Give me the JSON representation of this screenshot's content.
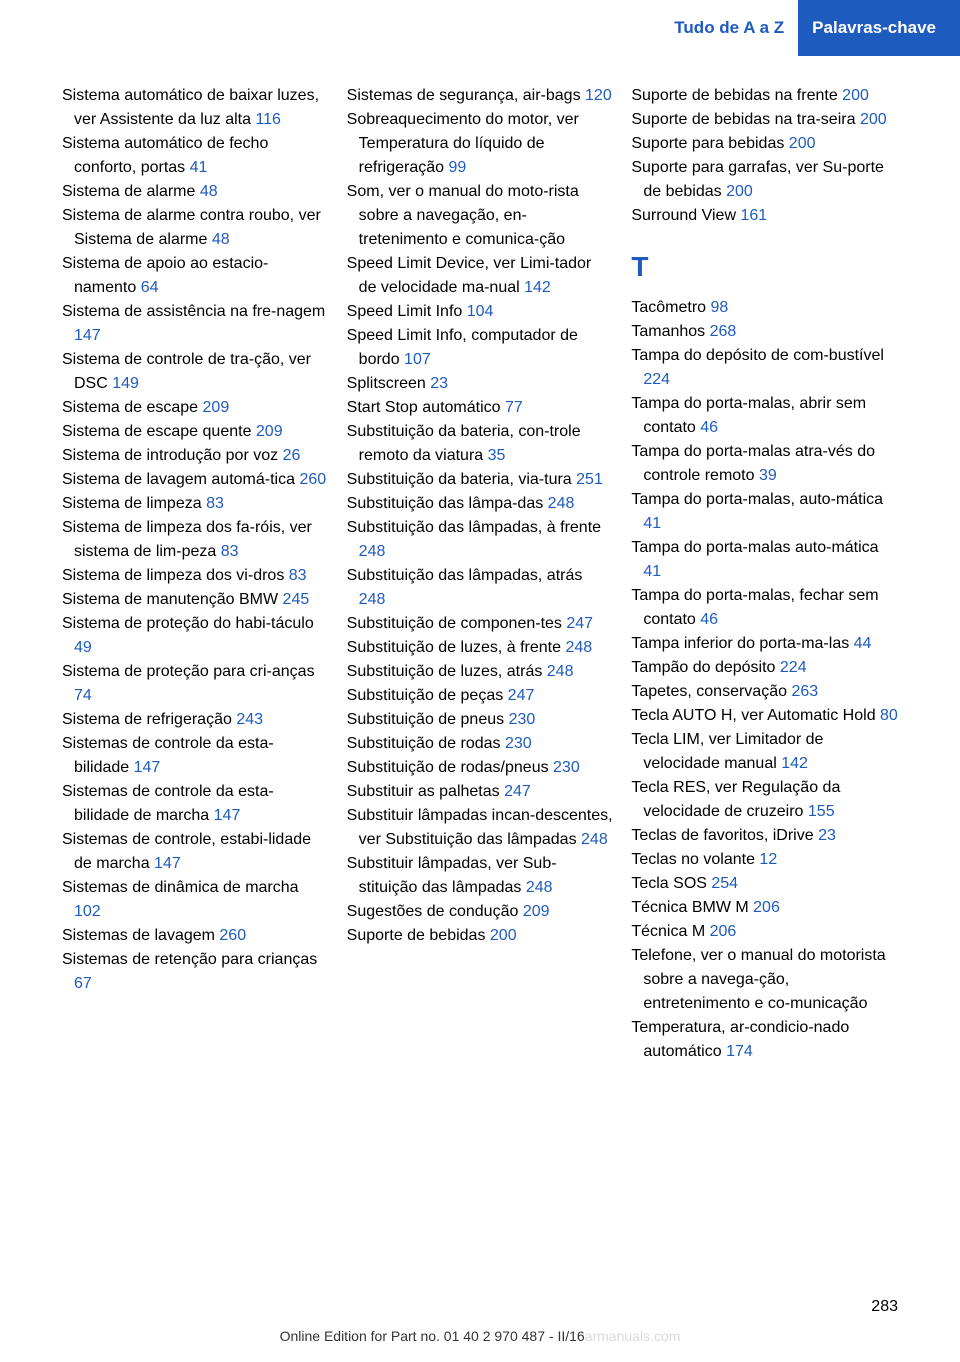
{
  "header": {
    "left": "Tudo de A a Z",
    "right": "Palavras-chave"
  },
  "columns": [
    [
      {
        "text": "Sistema automático de baixar luzes, ver Assistente da luz alta ",
        "ref": "116"
      },
      {
        "text": "Sistema automático de fecho conforto, portas ",
        "ref": "41"
      },
      {
        "text": "Sistema de alarme ",
        "ref": "48"
      },
      {
        "text": "Sistema de alarme contra roubo, ver Sistema de alarme ",
        "ref": "48"
      },
      {
        "text": "Sistema de apoio ao estacio‐namento ",
        "ref": "64"
      },
      {
        "text": "Sistema de assistência na fre‐nagem ",
        "ref": "147"
      },
      {
        "text": "Sistema de controle de tra‐ção, ver DSC ",
        "ref": "149"
      },
      {
        "text": "Sistema de escape ",
        "ref": "209"
      },
      {
        "text": "Sistema de escape quente ",
        "ref": "209"
      },
      {
        "text": "Sistema de introdução por voz ",
        "ref": "26"
      },
      {
        "text": "Sistema de lavagem automá‐tica ",
        "ref": "260"
      },
      {
        "text": "Sistema de limpeza ",
        "ref": "83"
      },
      {
        "text": "Sistema de limpeza dos fa‐róis, ver sistema de lim‐peza ",
        "ref": "83"
      },
      {
        "text": "Sistema de limpeza dos vi‐dros ",
        "ref": "83"
      },
      {
        "text": "Sistema de manutenção BMW ",
        "ref": "245"
      },
      {
        "text": "Sistema de proteção do habi‐táculo ",
        "ref": "49"
      },
      {
        "text": "Sistema de proteção para cri‐anças ",
        "ref": "74"
      },
      {
        "text": "Sistema de refrigeração ",
        "ref": "243"
      },
      {
        "text": "Sistemas de controle da esta‐bilidade ",
        "ref": "147"
      },
      {
        "text": "Sistemas de controle da esta‐bilidade de marcha ",
        "ref": "147"
      },
      {
        "text": "Sistemas de controle, estabi‐lidade de marcha ",
        "ref": "147"
      },
      {
        "text": "Sistemas de dinâmica de marcha ",
        "ref": "102"
      },
      {
        "text": "Sistemas de lavagem ",
        "ref": "260"
      },
      {
        "text": "Sistemas de retenção para crianças ",
        "ref": "67"
      }
    ],
    [
      {
        "text": "Sistemas de segurança, air‐bags ",
        "ref": "120"
      },
      {
        "text": "Sobreaquecimento do motor, ver Temperatura do líquido de refrigeração ",
        "ref": "99"
      },
      {
        "text": "Som, ver o manual do moto‐rista sobre a navegação, en‐tretenimento e comunica‐ção",
        "ref": ""
      },
      {
        "text": "Speed Limit Device, ver Limi‐tador de velocidade ma‐nual ",
        "ref": "142"
      },
      {
        "text": "Speed Limit Info ",
        "ref": "104"
      },
      {
        "text": "Speed Limit Info, computador de bordo ",
        "ref": "107"
      },
      {
        "text": "Splitscreen ",
        "ref": "23"
      },
      {
        "text": "Start Stop automático ",
        "ref": "77"
      },
      {
        "text": "Substituição da bateria, con‐trole remoto da viatura ",
        "ref": "35"
      },
      {
        "text": "Substituição da bateria, via‐tura ",
        "ref": "251"
      },
      {
        "text": "Substituição das lâmpa‐das ",
        "ref": "248"
      },
      {
        "text": "Substituição das lâmpadas, à frente ",
        "ref": "248"
      },
      {
        "text": "Substituição das lâmpadas, atrás ",
        "ref": "248"
      },
      {
        "text": "Substituição de componen‐tes ",
        "ref": "247"
      },
      {
        "text": "Substituição de luzes, à frente ",
        "ref": "248"
      },
      {
        "text": "Substituição de luzes, atrás ",
        "ref": "248"
      },
      {
        "text": "Substituição de peças ",
        "ref": "247"
      },
      {
        "text": "Substituição de pneus ",
        "ref": "230"
      },
      {
        "text": "Substituição de rodas ",
        "ref": "230"
      },
      {
        "text": "Substituição de rodas/pneus ",
        "ref": "230"
      },
      {
        "text": "Substituir as palhetas ",
        "ref": "247"
      },
      {
        "text": "Substituir lâmpadas incan‐descentes, ver Substituição das lâmpadas ",
        "ref": "248"
      },
      {
        "text": "Substituir lâmpadas, ver Sub‐stituição das lâmpadas ",
        "ref": "248"
      },
      {
        "text": "Sugestões de condução ",
        "ref": "209"
      },
      {
        "text": "Suporte de bebidas ",
        "ref": "200"
      }
    ],
    [
      {
        "text": "Suporte de bebidas na frente ",
        "ref": "200"
      },
      {
        "text": "Suporte de bebidas na tra‐seira ",
        "ref": "200"
      },
      {
        "text": "Suporte para bebidas ",
        "ref": "200"
      },
      {
        "text": "Suporte para garrafas, ver Su‐porte de bebidas ",
        "ref": "200"
      },
      {
        "text": "Surround View ",
        "ref": "161"
      },
      {
        "section": "T"
      },
      {
        "text": "Tacômetro ",
        "ref": "98"
      },
      {
        "text": "Tamanhos ",
        "ref": "268"
      },
      {
        "text": "Tampa do depósito de com‐bustível ",
        "ref": "224"
      },
      {
        "text": "Tampa do porta-malas, abrir sem contato ",
        "ref": "46"
      },
      {
        "text": "Tampa do porta-malas atra‐vés do controle remoto ",
        "ref": "39"
      },
      {
        "text": "Tampa do porta-malas, auto‐mática ",
        "ref": "41"
      },
      {
        "text": "Tampa do porta-malas auto‐mática ",
        "ref": "41"
      },
      {
        "text": "Tampa do porta-malas, fechar sem contato ",
        "ref": "46"
      },
      {
        "text": "Tampa inferior do porta-ma‐las ",
        "ref": "44"
      },
      {
        "text": "Tampão do depósito ",
        "ref": "224"
      },
      {
        "text": "Tapetes, conservação ",
        "ref": "263"
      },
      {
        "text": "Tecla AUTO H, ver Automatic Hold ",
        "ref": "80"
      },
      {
        "text": "Tecla LIM, ver Limitador de velocidade manual ",
        "ref": "142"
      },
      {
        "text": "Tecla RES, ver Regulação da velocidade de cruzeiro ",
        "ref": "155"
      },
      {
        "text": "Teclas de favoritos, iDrive ",
        "ref": "23"
      },
      {
        "text": "Teclas no volante ",
        "ref": "12"
      },
      {
        "text": "Tecla SOS ",
        "ref": "254"
      },
      {
        "text": "Técnica BMW M ",
        "ref": "206"
      },
      {
        "text": "Técnica M ",
        "ref": "206"
      },
      {
        "text": "Telefone, ver o manual do motorista sobre a navega‐ção, entretenimento e co‐municação",
        "ref": ""
      },
      {
        "text": "Temperatura, ar-condicio‐nado automático ",
        "ref": "174"
      }
    ]
  ],
  "page_number": "283",
  "footer": "Online Edition for Part no. 01 40 2 970 487 - II/16",
  "watermark": "armanuals.com"
}
